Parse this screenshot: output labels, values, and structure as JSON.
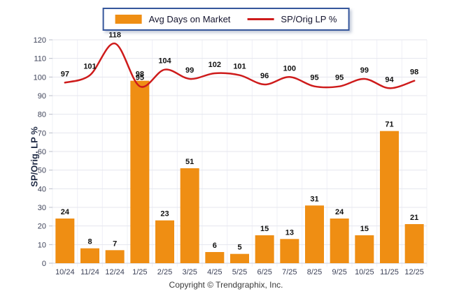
{
  "page": {
    "footer": "Copyright © Trendgraphix, Inc."
  },
  "colors": {
    "bar_orange": "#EF8E13",
    "line_red": "#CE1B1B",
    "legend_border": "#35569B",
    "grid_line": "#e4e6ee",
    "tick_text": "#3d4258"
  },
  "chart_data": {
    "type": "bar+line",
    "categories": [
      "10/24",
      "11/24",
      "12/24",
      "1/25",
      "2/25",
      "3/25",
      "4/25",
      "5/25",
      "6/25",
      "7/25",
      "8/25",
      "9/25",
      "10/25",
      "11/25",
      "12/25"
    ],
    "series": [
      {
        "name": "Avg Days on Market",
        "type": "bar",
        "color": "#EF8E13",
        "values": [
          24,
          8,
          7,
          98,
          23,
          51,
          6,
          5,
          15,
          13,
          31,
          24,
          15,
          71,
          21
        ]
      },
      {
        "name": "SP/Orig LP %",
        "type": "line",
        "color": "#CE1B1B",
        "values": [
          97,
          101,
          118,
          95,
          104,
          99,
          102,
          101,
          96,
          100,
          95,
          95,
          99,
          94,
          98
        ]
      }
    ],
    "title": "",
    "xlabel": "",
    "ylabel": "SP/Orig. LP %",
    "ylim": [
      0,
      120
    ],
    "ytick_step": 10,
    "grid": true,
    "legend_position": "top-center",
    "data_labels": true
  }
}
